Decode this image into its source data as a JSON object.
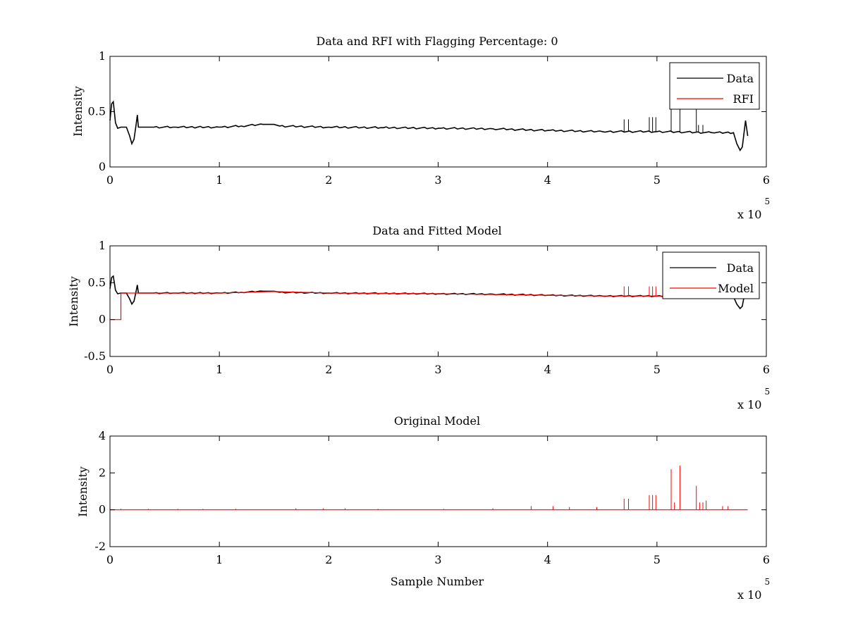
{
  "colors": {
    "data": "#000000",
    "rfi": "#ff0000",
    "background": "#ffffff"
  },
  "chart_data": [
    {
      "type": "line",
      "title": "Data and RFI with Flagging Percentage: 0",
      "xlabel": "",
      "ylabel": "Intensity",
      "xlim": [
        0,
        600000
      ],
      "ylim": [
        0,
        1
      ],
      "xticks": [
        "0",
        "1",
        "2",
        "3",
        "4",
        "5",
        "6"
      ],
      "yticks": [
        "0",
        "0.5",
        "1"
      ],
      "x_multiplier_base": "x 10",
      "x_multiplier_exp": "5",
      "legend": {
        "position": "top-right",
        "entries": [
          "Data",
          "RFI"
        ]
      },
      "series": [
        {
          "name": "Data",
          "color": "#000000",
          "points": [
            [
              0,
              0.42
            ],
            [
              1500,
              0.57
            ],
            [
              3000,
              0.59
            ],
            [
              5000,
              0.4
            ],
            [
              7000,
              0.35
            ],
            [
              10000,
              0.36
            ],
            [
              15000,
              0.36
            ],
            [
              18000,
              0.28
            ],
            [
              20000,
              0.21
            ],
            [
              22000,
              0.25
            ],
            [
              24000,
              0.39
            ],
            [
              25000,
              0.47
            ],
            [
              26000,
              0.36
            ],
            [
              40000,
              0.36
            ],
            [
              60000,
              0.36
            ],
            [
              80000,
              0.36
            ],
            [
              100000,
              0.36
            ],
            [
              120000,
              0.37
            ],
            [
              140000,
              0.385
            ],
            [
              150000,
              0.385
            ],
            [
              155000,
              0.37
            ],
            [
              200000,
              0.36
            ],
            [
              250000,
              0.355
            ],
            [
              300000,
              0.35
            ],
            [
              350000,
              0.345
            ],
            [
              400000,
              0.33
            ],
            [
              450000,
              0.32
            ],
            [
              500000,
              0.32
            ],
            [
              550000,
              0.31
            ],
            [
              570000,
              0.31
            ],
            [
              573000,
              0.21
            ],
            [
              576000,
              0.15
            ],
            [
              578000,
              0.18
            ],
            [
              581000,
              0.42
            ],
            [
              583000,
              0.28
            ]
          ],
          "spikes": [
            [
              470000,
              0.43
            ],
            [
              474000,
              0.43
            ],
            [
              493000,
              0.45
            ],
            [
              496000,
              0.45
            ],
            [
              499000,
              0.45
            ],
            [
              513000,
              0.55
            ],
            [
              521000,
              0.55
            ],
            [
              536000,
              0.55
            ],
            [
              538000,
              0.38
            ],
            [
              542000,
              0.38
            ]
          ]
        },
        {
          "name": "RFI",
          "color": "#ff0000",
          "points": []
        }
      ]
    },
    {
      "type": "line",
      "title": "Data and Fitted Model",
      "xlabel": "",
      "ylabel": "Intensity",
      "xlim": [
        0,
        600000
      ],
      "ylim": [
        -0.5,
        1
      ],
      "xticks": [
        "0",
        "1",
        "2",
        "3",
        "4",
        "5",
        "6"
      ],
      "yticks": [
        "-0.5",
        "0",
        "0.5",
        "1"
      ],
      "x_multiplier_base": "x 10",
      "x_multiplier_exp": "5",
      "legend": {
        "position": "top-right",
        "entries": [
          "Data",
          "Model"
        ]
      },
      "series": [
        {
          "name": "Data",
          "color": "#000000",
          "points": [
            [
              0,
              0.42
            ],
            [
              1500,
              0.57
            ],
            [
              3000,
              0.59
            ],
            [
              5000,
              0.4
            ],
            [
              7000,
              0.35
            ],
            [
              10000,
              0.36
            ],
            [
              15000,
              0.36
            ],
            [
              18000,
              0.28
            ],
            [
              20000,
              0.21
            ],
            [
              22000,
              0.25
            ],
            [
              24000,
              0.39
            ],
            [
              25000,
              0.47
            ],
            [
              26000,
              0.36
            ],
            [
              40000,
              0.36
            ],
            [
              60000,
              0.36
            ],
            [
              80000,
              0.36
            ],
            [
              100000,
              0.36
            ],
            [
              120000,
              0.37
            ],
            [
              140000,
              0.385
            ],
            [
              150000,
              0.385
            ],
            [
              155000,
              0.37
            ],
            [
              200000,
              0.36
            ],
            [
              250000,
              0.355
            ],
            [
              300000,
              0.35
            ],
            [
              350000,
              0.345
            ],
            [
              400000,
              0.33
            ],
            [
              450000,
              0.32
            ],
            [
              500000,
              0.32
            ],
            [
              550000,
              0.31
            ],
            [
              570000,
              0.31
            ],
            [
              573000,
              0.21
            ],
            [
              576000,
              0.15
            ],
            [
              578000,
              0.18
            ],
            [
              581000,
              0.42
            ],
            [
              583000,
              0.28
            ]
          ],
          "spikes": []
        },
        {
          "name": "Model",
          "color": "#ff0000",
          "points": [
            [
              0,
              0
            ],
            [
              10000,
              0
            ],
            [
              10000,
              0.36
            ],
            [
              40000,
              0.36
            ],
            [
              100000,
              0.36
            ],
            [
              150000,
              0.38
            ],
            [
              200000,
              0.36
            ],
            [
              300000,
              0.35
            ],
            [
              400000,
              0.33
            ],
            [
              450000,
              0.32
            ],
            [
              500000,
              0.32
            ],
            [
              550000,
              0.31
            ]
          ],
          "spikes": [
            [
              470000,
              0.45
            ],
            [
              474000,
              0.45
            ],
            [
              493000,
              0.45
            ],
            [
              496000,
              0.45
            ],
            [
              499000,
              0.45
            ]
          ]
        }
      ]
    },
    {
      "type": "line",
      "title": "Original Model",
      "xlabel": "Sample Number",
      "ylabel": "Intensity",
      "xlim": [
        0,
        600000
      ],
      "ylim": [
        -2,
        4
      ],
      "xticks": [
        "0",
        "1",
        "2",
        "3",
        "4",
        "5",
        "6"
      ],
      "yticks": [
        "-2",
        "0",
        "2",
        "4"
      ],
      "x_multiplier_base": "x 10",
      "x_multiplier_exp": "5",
      "legend": null,
      "series": [
        {
          "name": "",
          "color": "#ff0000",
          "points": [
            [
              0,
              0
            ],
            [
              583000,
              0
            ]
          ],
          "spikes": [
            [
              10000,
              0.05
            ],
            [
              35000,
              0.05
            ],
            [
              62000,
              0.05
            ],
            [
              85000,
              0.05
            ],
            [
              115000,
              0.05
            ],
            [
              170000,
              0.08
            ],
            [
              195000,
              0.08
            ],
            [
              215000,
              0.08
            ],
            [
              245000,
              0.05
            ],
            [
              305000,
              0.05
            ],
            [
              350000,
              0.08
            ],
            [
              385000,
              0.2
            ],
            [
              405000,
              0.2
            ],
            [
              420000,
              0.15
            ],
            [
              445000,
              0.15
            ],
            [
              470000,
              0.6
            ],
            [
              474000,
              0.6
            ],
            [
              493000,
              0.8
            ],
            [
              496000,
              0.8
            ],
            [
              499000,
              0.8
            ],
            [
              513000,
              2.2
            ],
            [
              516000,
              0.4
            ],
            [
              521000,
              2.4
            ],
            [
              536000,
              1.3
            ],
            [
              539000,
              0.4
            ],
            [
              542000,
              0.4
            ],
            [
              545000,
              0.5
            ],
            [
              560000,
              0.2
            ],
            [
              565000,
              0.2
            ]
          ]
        }
      ]
    }
  ]
}
